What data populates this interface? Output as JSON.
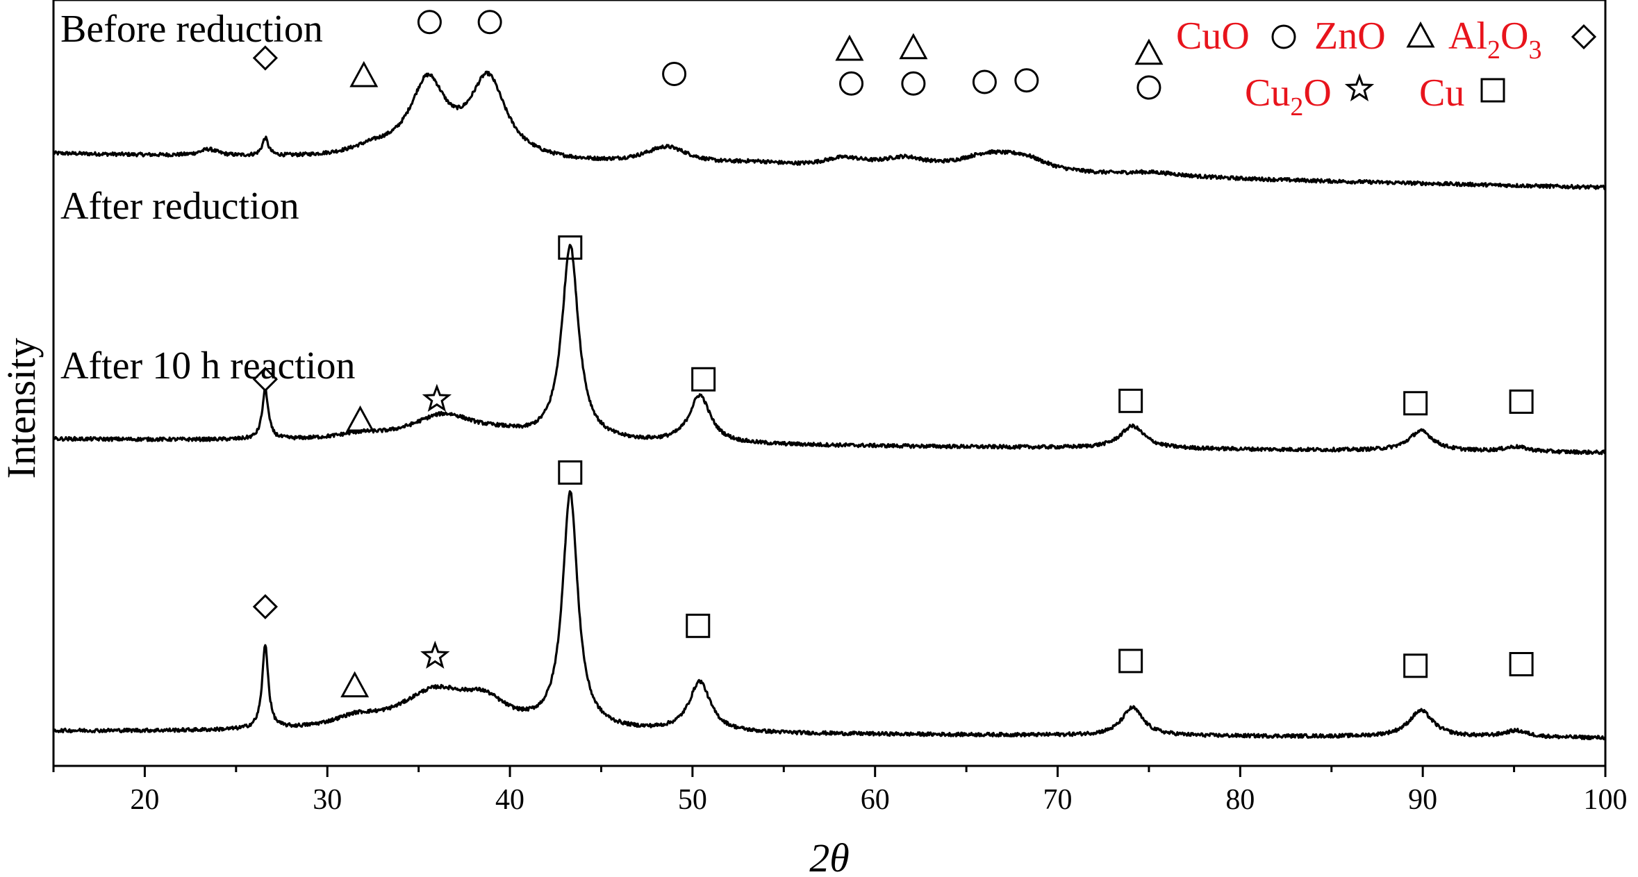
{
  "chart_data": {
    "type": "line",
    "xlabel": "2θ",
    "xlabel_base": "2",
    "xlabel_symbol": "θ",
    "ylabel": "Intensity",
    "xlim": [
      15,
      100
    ],
    "x_ticks": [
      20,
      30,
      40,
      50,
      60,
      70,
      80,
      90,
      100
    ],
    "x_tick_labels": [
      "20",
      "30",
      "40",
      "50",
      "60",
      "70",
      "80",
      "90",
      "100"
    ],
    "y_ticks_shown": false,
    "grid": false,
    "legend_position": "top-right",
    "legend_color": "#e8141c",
    "legend": [
      {
        "phase": "CuO",
        "main": "CuO",
        "sub1": "",
        "mid": "",
        "sub2": "",
        "marker": "circle"
      },
      {
        "phase": "ZnO",
        "main": "ZnO",
        "sub1": "",
        "mid": "",
        "sub2": "",
        "marker": "triangle"
      },
      {
        "phase": "Al2O3",
        "main": "Al",
        "sub1": "2",
        "mid": "O",
        "sub2": "3",
        "marker": "diamond"
      },
      {
        "phase": "Cu2O",
        "main": "Cu",
        "sub1": "2",
        "mid": "O",
        "sub2": "",
        "marker": "star"
      },
      {
        "phase": "Cu",
        "main": "Cu",
        "sub1": "",
        "mid": "",
        "sub2": "",
        "marker": "square"
      }
    ],
    "series": [
      {
        "name": "Before reduction",
        "baseline": 0.9,
        "slope": -0.005,
        "peaks": [
          {
            "x": 23.5,
            "h": 0.08,
            "w": 0.6
          },
          {
            "x": 26.6,
            "h": 0.22,
            "w": 0.2
          },
          {
            "x": 32.5,
            "h": 0.1,
            "w": 1.5
          },
          {
            "x": 35.5,
            "h": 0.95,
            "w": 1.2
          },
          {
            "x": 38.8,
            "h": 1.0,
            "w": 1.2
          },
          {
            "x": 48.6,
            "h": 0.22,
            "w": 1.5
          },
          {
            "x": 53.5,
            "h": 0.05,
            "w": 2.0
          },
          {
            "x": 58.3,
            "h": 0.12,
            "w": 1.5
          },
          {
            "x": 61.6,
            "h": 0.13,
            "w": 1.5
          },
          {
            "x": 66.2,
            "h": 0.2,
            "w": 2.0
          },
          {
            "x": 68.2,
            "h": 0.14,
            "w": 1.5
          },
          {
            "x": 75.2,
            "h": 0.05,
            "w": 2.0
          }
        ],
        "markers": [
          {
            "x": 26.6,
            "y": 2.1,
            "shape": "diamond"
          },
          {
            "x": 32.0,
            "y": 1.87,
            "shape": "triangle"
          },
          {
            "x": 35.6,
            "y": 2.55,
            "shape": "circle"
          },
          {
            "x": 38.9,
            "y": 2.55,
            "shape": "circle"
          },
          {
            "x": 49.0,
            "y": 1.9,
            "shape": "circle"
          },
          {
            "x": 58.7,
            "y": 1.78,
            "shape": "circle"
          },
          {
            "x": 58.6,
            "y": 2.2,
            "shape": "triangle"
          },
          {
            "x": 62.1,
            "y": 1.78,
            "shape": "circle"
          },
          {
            "x": 62.1,
            "y": 2.22,
            "shape": "triangle"
          },
          {
            "x": 66.0,
            "y": 1.8,
            "shape": "circle"
          },
          {
            "x": 68.3,
            "y": 1.82,
            "shape": "circle"
          },
          {
            "x": 75.0,
            "y": 1.73,
            "shape": "circle"
          },
          {
            "x": 75.0,
            "y": 2.15,
            "shape": "triangle"
          }
        ]
      },
      {
        "name": "After reduction",
        "baseline": 0.5,
        "slope": -0.002,
        "peaks": [
          {
            "x": 26.6,
            "h": 0.62,
            "w": 0.2
          },
          {
            "x": 31.8,
            "h": 0.06,
            "w": 1.5
          },
          {
            "x": 36.4,
            "h": 0.33,
            "w": 2.2
          },
          {
            "x": 39.5,
            "h": 0.06,
            "w": 1.5
          },
          {
            "x": 43.3,
            "h": 2.45,
            "w": 0.55
          },
          {
            "x": 50.4,
            "h": 0.6,
            "w": 0.7
          },
          {
            "x": 74.1,
            "h": 0.28,
            "w": 0.8
          },
          {
            "x": 89.9,
            "h": 0.25,
            "w": 0.8
          },
          {
            "x": 95.1,
            "h": 0.06,
            "w": 0.8
          }
        ],
        "markers": [
          {
            "x": 43.3,
            "y": 2.9,
            "shape": "square"
          },
          {
            "x": 26.6,
            "y": 1.25,
            "shape": "diamond"
          },
          {
            "x": 31.8,
            "y": 0.73,
            "shape": "triangle"
          },
          {
            "x": 36.0,
            "y": 1.0,
            "shape": "star"
          },
          {
            "x": 50.6,
            "y": 1.25,
            "shape": "square"
          },
          {
            "x": 74.0,
            "y": 0.98,
            "shape": "square"
          },
          {
            "x": 89.6,
            "y": 0.95,
            "shape": "square"
          },
          {
            "x": 95.4,
            "y": 0.97,
            "shape": "square"
          }
        ]
      },
      {
        "name": "After 10 h reaction",
        "baseline": 0.06,
        "slope": -0.001,
        "peaks": [
          {
            "x": 26.6,
            "h": 1.05,
            "w": 0.2
          },
          {
            "x": 31.6,
            "h": 0.12,
            "w": 1.5
          },
          {
            "x": 35.9,
            "h": 0.48,
            "w": 2.4
          },
          {
            "x": 38.6,
            "h": 0.28,
            "w": 1.5
          },
          {
            "x": 43.3,
            "h": 2.95,
            "w": 0.5
          },
          {
            "x": 50.4,
            "h": 0.63,
            "w": 0.7
          },
          {
            "x": 74.1,
            "h": 0.35,
            "w": 0.7
          },
          {
            "x": 89.9,
            "h": 0.33,
            "w": 0.8
          },
          {
            "x": 95.1,
            "h": 0.08,
            "w": 0.8
          }
        ],
        "markers": [
          {
            "x": 43.3,
            "y": 3.3,
            "shape": "square"
          },
          {
            "x": 26.6,
            "y": 1.62,
            "shape": "diamond"
          },
          {
            "x": 31.5,
            "y": 0.62,
            "shape": "triangle"
          },
          {
            "x": 35.9,
            "y": 1.0,
            "shape": "star"
          },
          {
            "x": 50.3,
            "y": 1.38,
            "shape": "square"
          },
          {
            "x": 74.0,
            "y": 0.94,
            "shape": "square"
          },
          {
            "x": 89.6,
            "y": 0.88,
            "shape": "square"
          },
          {
            "x": 95.4,
            "y": 0.9,
            "shape": "square"
          }
        ]
      }
    ]
  }
}
